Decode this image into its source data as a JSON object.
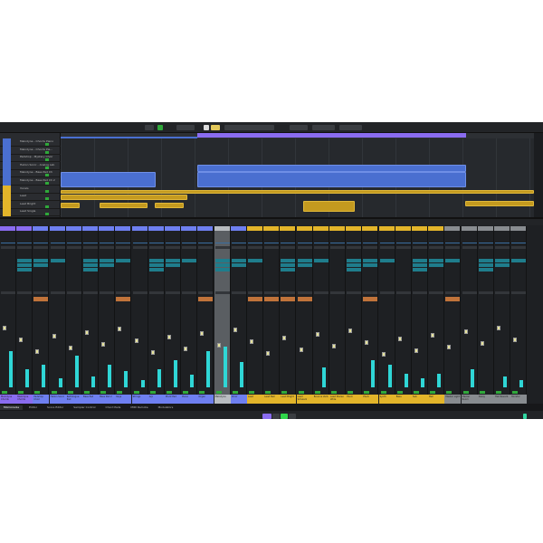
{
  "colors": {
    "blue": "#4a6fd0",
    "purple": "#8a6cf0",
    "gold": "#e3b52a",
    "gray": "#888c90",
    "selected": "#b8bcc0",
    "green": "#2fa83a",
    "meter": "#2fd6d6"
  },
  "tracks": [
    {
      "name": "Melodyne - Chords Piano",
      "color": "#4a6fd0"
    },
    {
      "name": "Melodyne - Chords Pia...",
      "color": "#4a6fd0"
    },
    {
      "name": "Padshop - Mystery Choir",
      "color": "#4a6fd0"
    },
    {
      "name": "Halion Sonic - Analog Lab",
      "color": "#4a6fd0"
    },
    {
      "name": "Melodyne - Bass Pad Ch",
      "color": "#4a6fd0"
    },
    {
      "name": "Melodyne - Bass Pad Ch 2",
      "color": "#4a6fd0"
    },
    {
      "name": "Vocals",
      "color": "#e3b52a"
    },
    {
      "name": "Lead",
      "color": "#e3b52a"
    },
    {
      "name": "Lead Bright",
      "color": "#e3b52a"
    },
    {
      "name": "Lead Single",
      "color": "#e3b52a"
    }
  ],
  "channels": [
    {
      "name": "Melodyne Chords",
      "color": "#8a6cf0"
    },
    {
      "name": "Melodyne Chords",
      "color": "#8a6cf0"
    },
    {
      "name": "Padshop Choir",
      "color": "#6e7ff0"
    },
    {
      "name": "Halion Sonic",
      "color": "#6e7ff0"
    },
    {
      "name": "Retrologue Pad",
      "color": "#6e7ff0"
    },
    {
      "name": "Bass Pad",
      "color": "#6e7ff0"
    },
    {
      "name": "Bass Pad 2",
      "color": "#6e7ff0"
    },
    {
      "name": "Keys",
      "color": "#6e7ff0"
    },
    {
      "name": "Strings",
      "color": "#6e7ff0"
    },
    {
      "name": "Arp",
      "color": "#6e7ff0"
    },
    {
      "name": "Pluck Pad",
      "color": "#6e7ff0"
    },
    {
      "name": "Piano",
      "color": "#6e7ff0"
    },
    {
      "name": "Organ",
      "color": "#6e7ff0"
    },
    {
      "name": "Melodyne",
      "color": "#b8bcc0"
    },
    {
      "name": "Choir",
      "color": "#6e7ff0"
    },
    {
      "name": "Lead",
      "color": "#e3b52a"
    },
    {
      "name": "Lead Bell",
      "color": "#e3b52a"
    },
    {
      "name": "Lead Bright",
      "color": "#e3b52a"
    },
    {
      "name": "Lead Schwarz",
      "color": "#e3b52a"
    },
    {
      "name": "Bounce Verb",
      "color": "#e3b52a"
    },
    {
      "name": "Lead Stereo Wide",
      "color": "#e3b52a"
    },
    {
      "name": "Pluck",
      "color": "#e3b52a"
    },
    {
      "name": "Pluck",
      "color": "#e3b52a"
    },
    {
      "name": "Synth",
      "color": "#e3b52a"
    },
    {
      "name": "Bass",
      "color": "#e3b52a"
    },
    {
      "name": "Sub",
      "color": "#e3b52a"
    },
    {
      "name": "Bell",
      "color": "#e3b52a"
    },
    {
      "name": "Master Light",
      "color": "#888c90"
    },
    {
      "name": "Master Room",
      "color": "#888c90"
    },
    {
      "name": "Delay",
      "color": "#888c90"
    },
    {
      "name": "Hall Reverb",
      "color": "#888c90"
    },
    {
      "name": "Monitor",
      "color": "#888c90"
    }
  ],
  "lower_zone_tabs": [
    "MixConsole",
    "Editor",
    "Score Editor",
    "Sampler Control",
    "Chord Pads",
    "MIDI Remote",
    "Modulators"
  ],
  "active_tab": "MixConsole"
}
